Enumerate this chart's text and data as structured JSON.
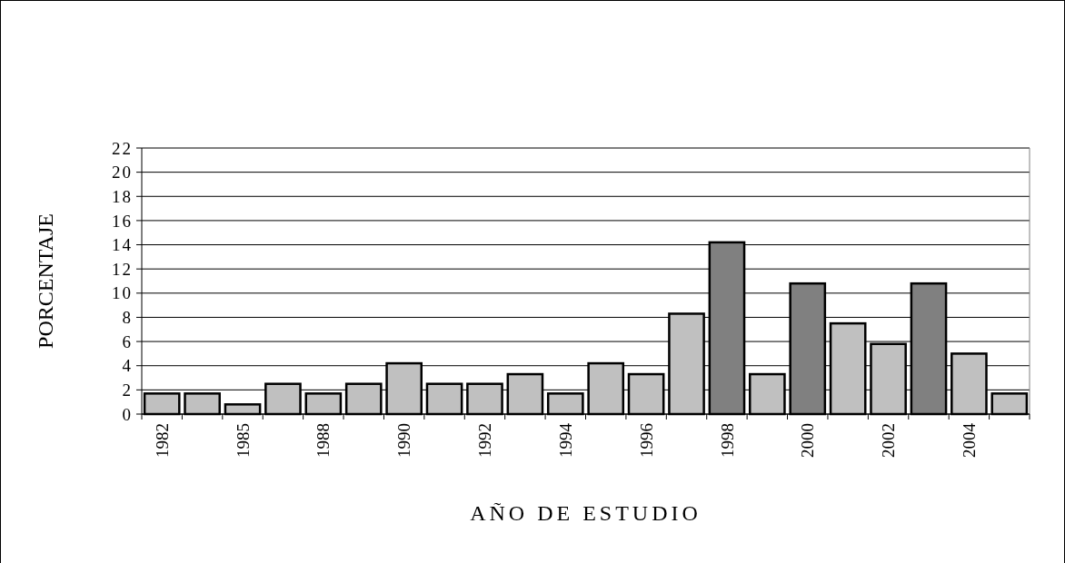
{
  "chart_data": {
    "type": "bar",
    "ylabel": "PORCENTAJE",
    "xlabel": "AÑO DE ESTUDIO",
    "categories": [
      "1982",
      null,
      "1985",
      null,
      "1988",
      null,
      "1990",
      null,
      "1992",
      null,
      "1994",
      null,
      "1996",
      null,
      "1998",
      null,
      "2000",
      null,
      "2002",
      null,
      "2004",
      null
    ],
    "values": [
      1.7,
      1.7,
      0.8,
      2.5,
      1.7,
      2.5,
      4.2,
      2.5,
      2.5,
      3.3,
      1.7,
      4.2,
      3.3,
      8.3,
      14.2,
      3.3,
      10.8,
      7.5,
      5.8,
      10.8,
      5.0,
      1.7
    ],
    "colors": [
      "#c0c0c0",
      "#c0c0c0",
      "#c0c0c0",
      "#c0c0c0",
      "#c0c0c0",
      "#c0c0c0",
      "#c0c0c0",
      "#c0c0c0",
      "#c0c0c0",
      "#c0c0c0",
      "#c0c0c0",
      "#c0c0c0",
      "#c0c0c0",
      "#c0c0c0",
      "#808080",
      "#c0c0c0",
      "#808080",
      "#c0c0c0",
      "#c0c0c0",
      "#808080",
      "#c0c0c0",
      "#c0c0c0"
    ],
    "ylim": [
      0,
      22
    ],
    "yticks": [
      0,
      2,
      4,
      6,
      8,
      10,
      12,
      14,
      16,
      18,
      20,
      22
    ],
    "grid": "y"
  }
}
